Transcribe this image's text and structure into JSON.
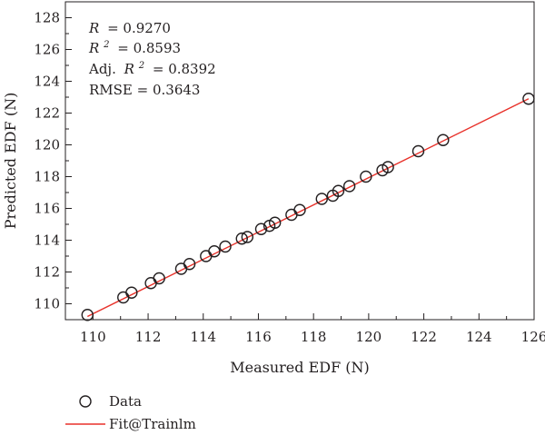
{
  "chart_data": {
    "type": "scatter",
    "xlabel": "Measured EDF (N)",
    "ylabel": "Predicted EDF (N)",
    "xlim": [
      109,
      126
    ],
    "ylim": [
      109,
      129
    ],
    "x_ticks": [
      110,
      112,
      114,
      116,
      118,
      120,
      122,
      124,
      126
    ],
    "y_ticks": [
      110,
      112,
      114,
      116,
      118,
      120,
      122,
      124,
      126,
      128
    ],
    "grid": false,
    "legend_position": "bottom-left, below plot",
    "stats": {
      "r_label": "R",
      "r_value": "= 0.9270",
      "r2_label": "R",
      "r2_sup": "2",
      "r2_value": "= 0.8593",
      "adj_prefix": "Adj. ",
      "adj_label": "R",
      "adj_sup": "2",
      "adj_value": "= 0.8392",
      "rmse": "RMSE = 0.3643"
    },
    "series": [
      {
        "name": "Data",
        "type": "scatter",
        "marker": "open-circle",
        "color": "#231f20",
        "points": [
          [
            109.8,
            109.3
          ],
          [
            111.1,
            110.4
          ],
          [
            111.4,
            110.7
          ],
          [
            112.1,
            111.3
          ],
          [
            112.4,
            111.6
          ],
          [
            113.2,
            112.2
          ],
          [
            113.5,
            112.5
          ],
          [
            114.1,
            113.0
          ],
          [
            114.4,
            113.3
          ],
          [
            114.8,
            113.6
          ],
          [
            115.4,
            114.1
          ],
          [
            115.6,
            114.2
          ],
          [
            116.1,
            114.7
          ],
          [
            116.4,
            114.9
          ],
          [
            116.6,
            115.1
          ],
          [
            117.2,
            115.6
          ],
          [
            117.5,
            115.9
          ],
          [
            118.3,
            116.6
          ],
          [
            118.7,
            116.8
          ],
          [
            118.9,
            117.1
          ],
          [
            119.3,
            117.4
          ],
          [
            119.9,
            118.0
          ],
          [
            120.5,
            118.4
          ],
          [
            120.7,
            118.6
          ],
          [
            121.8,
            119.6
          ],
          [
            122.7,
            120.3
          ],
          [
            125.8,
            122.9
          ]
        ]
      },
      {
        "name": "Fit@Trainlm",
        "type": "line",
        "color": "#e8312a",
        "x": [
          109.8,
          125.8
        ],
        "y": [
          109.2,
          122.9
        ]
      }
    ]
  }
}
